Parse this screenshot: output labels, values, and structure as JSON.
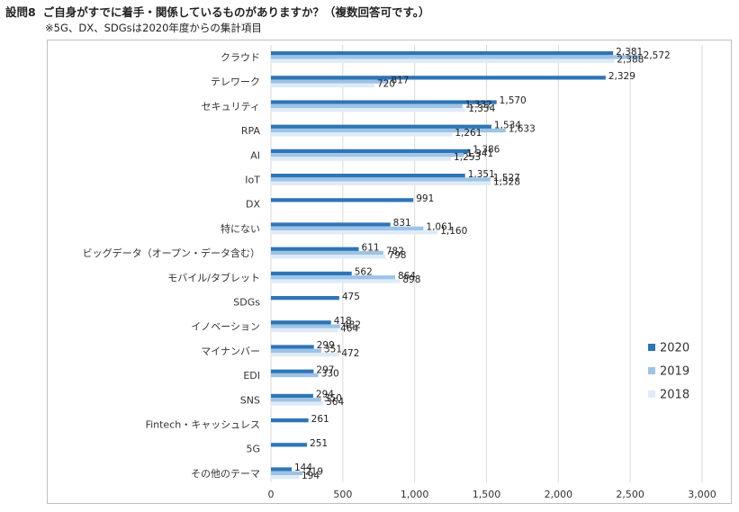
{
  "title": {
    "number": "設問8",
    "question": "ご自身がすでに着手・関係しているものがありますか？（複数回答可です。）"
  },
  "note": "※5G、DX、SDGsは2020年度からの集計項目",
  "colors": {
    "2020": "#2e75b6",
    "2019": "#9dc3e6",
    "2018": "#deebf7"
  },
  "chart_data": {
    "type": "bar",
    "orientation": "horizontal",
    "categories": [
      "クラウド",
      "テレワーク",
      "セキュリティ",
      "RPA",
      "AI",
      "IoT",
      "DX",
      "特にない",
      "ビッグデータ（オープン・データ含む）",
      "モバイル/タブレット",
      "SDGs",
      "イノベーション",
      "マイナンバー",
      "EDI",
      "SNS",
      "Fintech・キャッシュレス",
      "5G",
      "その他のテーマ"
    ],
    "series": [
      {
        "name": "2020",
        "values": [
          2381,
          2329,
          1570,
          1534,
          1386,
          1351,
          991,
          831,
          611,
          562,
          475,
          418,
          299,
          297,
          294,
          261,
          251,
          144
        ]
      },
      {
        "name": "2019",
        "values": [
          2572,
          817,
          1332,
          1633,
          1341,
          1527,
          null,
          1061,
          782,
          864,
          null,
          482,
          351,
          330,
          350,
          null,
          null,
          219
        ]
      },
      {
        "name": "2018",
        "values": [
          2388,
          720,
          1354,
          1261,
          1253,
          1528,
          null,
          1160,
          798,
          898,
          null,
          464,
          472,
          null,
          364,
          null,
          null,
          194
        ]
      }
    ],
    "value_labels": {
      "2020": [
        "2,381",
        "2,329",
        "1,570",
        "1,534",
        "1,386",
        "1,351",
        "991",
        "831",
        "611",
        "562",
        "475",
        "418",
        "299",
        "297",
        "294",
        "261",
        "251",
        "144"
      ],
      "2019": [
        "2,572",
        "817",
        "1,332",
        "1,633",
        "1,341",
        "1,527",
        "",
        "1,061",
        "782",
        "864",
        "",
        "482",
        "351",
        "330",
        "350",
        "",
        "",
        "219"
      ],
      "2018": [
        "2,388",
        "720",
        "1,354",
        "1,261",
        "1,253",
        "1,528",
        "",
        "1,160",
        "798",
        "898",
        "",
        "464",
        "472",
        "",
        "364",
        "",
        "",
        "194"
      ]
    },
    "xlim": [
      0,
      3000
    ],
    "xticks": [
      0,
      500,
      1000,
      1500,
      2000,
      2500,
      3000
    ],
    "xtick_labels": [
      "0",
      "500",
      "1,000",
      "1,500",
      "2,000",
      "2,500",
      "3,000"
    ],
    "grid": true,
    "legend": {
      "placement": "right",
      "entries": [
        "2020",
        "2019",
        "2018"
      ]
    },
    "title": "",
    "xlabel": "",
    "ylabel": ""
  }
}
